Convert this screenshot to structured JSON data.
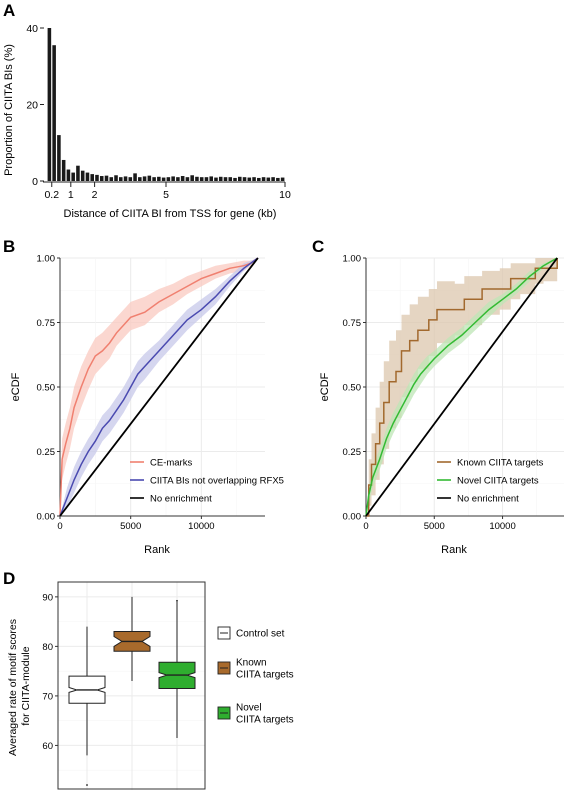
{
  "colors": {
    "ce_marks": "#f08070",
    "ce_marks_band": "#f9c9c0",
    "ciita_bis": "#4a4ab0",
    "ciita_bis_band": "#c7c8ea",
    "known": "#a2692e",
    "known_band": "#dcc7ae",
    "novel": "#33bb33",
    "novel_band": "#bde6b6",
    "no_enrichment": "#000000",
    "control_box": "#ffffff",
    "known_box": "#a86a2c",
    "novel_box": "#2fae2f"
  },
  "chart_data": [
    {
      "panel": "A",
      "type": "bar",
      "xlabel": "Distance of CIITA BI from TSS for gene (kb)",
      "ylabel": "Proportion of CIITA BIs (%)",
      "xlim": [
        0,
        10
      ],
      "ylim": [
        0,
        40
      ],
      "yticks": [
        0,
        20,
        40
      ],
      "xtick_labels": [
        "0.2",
        "1",
        "2",
        "5",
        "10"
      ],
      "xtick_values": [
        0.2,
        1,
        2,
        5,
        10
      ],
      "bin_width_kb": 0.2,
      "values": [
        40,
        35.5,
        12,
        5.5,
        3,
        2.2,
        4,
        2.7,
        2.2,
        1.8,
        1.6,
        1.3,
        1.4,
        1.0,
        1.5,
        1.0,
        1.2,
        1.0,
        2.0,
        1.0,
        1.2,
        1.4,
        1.0,
        1.1,
        0.9,
        1.0,
        1.2,
        1.0,
        1.3,
        1.0,
        1.5,
        1.1,
        1.0,
        1.0,
        1.2,
        0.9,
        1.1,
        1.0,
        1.0,
        0.8,
        1.1,
        1.0,
        0.9,
        1.0,
        0.8,
        1.0,
        0.9,
        1.0,
        0.8,
        0.9
      ]
    },
    {
      "panel": "B",
      "type": "line",
      "xlabel": "Rank",
      "ylabel": "eCDF",
      "xlim": [
        0,
        14500
      ],
      "ylim": [
        0,
        1
      ],
      "xticks": [
        0,
        5000,
        10000
      ],
      "ytick_labels": [
        "0.00",
        "0.25",
        "0.50",
        "0.75",
        "1.00"
      ],
      "grid": true,
      "legend_position": "bottom-right",
      "series": [
        {
          "name": "CE-marks",
          "color_key": "ce_marks",
          "band_key": "ce_marks_band",
          "x": [
            0,
            150,
            400,
            700,
            1000,
            1500,
            2000,
            2500,
            3000,
            3500,
            4000,
            4500,
            5000,
            6000,
            7000,
            8000,
            9000,
            10000,
            11000,
            12000,
            13000,
            13500,
            14000
          ],
          "y": [
            0,
            0.22,
            0.28,
            0.34,
            0.42,
            0.5,
            0.57,
            0.62,
            0.64,
            0.67,
            0.71,
            0.74,
            0.77,
            0.79,
            0.83,
            0.86,
            0.89,
            0.92,
            0.94,
            0.96,
            0.97,
            0.98,
            1.0
          ],
          "lo": [
            0,
            0.14,
            0.2,
            0.26,
            0.34,
            0.42,
            0.49,
            0.55,
            0.58,
            0.61,
            0.66,
            0.69,
            0.72,
            0.74,
            0.79,
            0.82,
            0.86,
            0.89,
            0.92,
            0.94,
            0.95,
            0.97,
            1.0
          ],
          "hi": [
            0,
            0.3,
            0.36,
            0.42,
            0.5,
            0.58,
            0.64,
            0.69,
            0.71,
            0.74,
            0.77,
            0.8,
            0.83,
            0.85,
            0.88,
            0.9,
            0.93,
            0.95,
            0.97,
            0.98,
            0.99,
            0.99,
            1.0
          ]
        },
        {
          "name": "CIITA BIs not overlapping RFX5",
          "color_key": "ciita_bis",
          "band_key": "ciita_bis_band",
          "x": [
            0,
            500,
            1000,
            1500,
            2000,
            2500,
            3000,
            3500,
            4000,
            4500,
            5000,
            5500,
            6000,
            7000,
            8000,
            9000,
            10000,
            11000,
            12000,
            13000,
            14000
          ],
          "y": [
            0,
            0.07,
            0.14,
            0.2,
            0.25,
            0.29,
            0.34,
            0.37,
            0.41,
            0.45,
            0.5,
            0.55,
            0.58,
            0.64,
            0.7,
            0.76,
            0.8,
            0.85,
            0.91,
            0.96,
            1.0
          ],
          "lo": [
            0,
            0.03,
            0.09,
            0.15,
            0.2,
            0.24,
            0.29,
            0.32,
            0.36,
            0.4,
            0.45,
            0.5,
            0.53,
            0.6,
            0.66,
            0.72,
            0.77,
            0.82,
            0.89,
            0.95,
            1.0
          ],
          "hi": [
            0,
            0.11,
            0.19,
            0.25,
            0.3,
            0.34,
            0.39,
            0.42,
            0.46,
            0.5,
            0.55,
            0.6,
            0.63,
            0.68,
            0.74,
            0.8,
            0.84,
            0.88,
            0.93,
            0.98,
            1.0
          ]
        },
        {
          "name": "No enrichment",
          "color_key": "no_enrichment",
          "x": [
            0,
            14000
          ],
          "y": [
            0,
            1
          ]
        }
      ]
    },
    {
      "panel": "C",
      "type": "line",
      "xlabel": "Rank",
      "ylabel": "eCDF",
      "xlim": [
        0,
        14500
      ],
      "ylim": [
        0,
        1
      ],
      "xticks": [
        0,
        5000,
        10000
      ],
      "ytick_labels": [
        "0.00",
        "0.25",
        "0.50",
        "0.75",
        "1.00"
      ],
      "grid": true,
      "legend_position": "bottom-right",
      "series": [
        {
          "name": "Known CIITA targets",
          "color_key": "known",
          "band_key": "known_band",
          "step": true,
          "x": [
            0,
            200,
            400,
            700,
            1000,
            1300,
            1700,
            2200,
            2600,
            3200,
            3800,
            4600,
            5200,
            6500,
            7200,
            8500,
            9800,
            10600,
            11300,
            12400,
            13000,
            14000
          ],
          "y": [
            0,
            0.12,
            0.2,
            0.28,
            0.36,
            0.44,
            0.52,
            0.56,
            0.64,
            0.68,
            0.72,
            0.76,
            0.8,
            0.8,
            0.84,
            0.88,
            0.88,
            0.92,
            0.92,
            0.96,
            0.96,
            1.0
          ],
          "lo": [
            0,
            0.04,
            0.08,
            0.14,
            0.2,
            0.26,
            0.34,
            0.38,
            0.46,
            0.52,
            0.57,
            0.62,
            0.67,
            0.7,
            0.74,
            0.78,
            0.8,
            0.84,
            0.86,
            0.9,
            0.91,
            1.0
          ],
          "hi": [
            0,
            0.22,
            0.32,
            0.42,
            0.52,
            0.6,
            0.68,
            0.72,
            0.78,
            0.82,
            0.85,
            0.88,
            0.91,
            0.9,
            0.93,
            0.95,
            0.96,
            0.98,
            0.98,
            1.0,
            1.0,
            1.0
          ]
        },
        {
          "name": "Novel CIITA targets",
          "color_key": "novel",
          "band_key": "novel_band",
          "x": [
            0,
            200,
            500,
            1000,
            1500,
            2000,
            2500,
            3000,
            3500,
            4000,
            4500,
            5000,
            6000,
            7000,
            8000,
            9000,
            10000,
            11000,
            12000,
            13000,
            14000
          ],
          "y": [
            0,
            0.08,
            0.15,
            0.22,
            0.3,
            0.36,
            0.41,
            0.46,
            0.51,
            0.55,
            0.58,
            0.61,
            0.66,
            0.7,
            0.75,
            0.8,
            0.84,
            0.88,
            0.93,
            0.97,
            1.0
          ],
          "lo": [
            0,
            0.05,
            0.11,
            0.18,
            0.26,
            0.32,
            0.37,
            0.42,
            0.47,
            0.51,
            0.55,
            0.58,
            0.63,
            0.67,
            0.72,
            0.77,
            0.82,
            0.86,
            0.91,
            0.96,
            1.0
          ],
          "hi": [
            0,
            0.11,
            0.19,
            0.26,
            0.34,
            0.4,
            0.45,
            0.5,
            0.55,
            0.59,
            0.62,
            0.64,
            0.69,
            0.73,
            0.78,
            0.83,
            0.86,
            0.9,
            0.95,
            0.98,
            1.0
          ]
        },
        {
          "name": "No enrichment",
          "color_key": "no_enrichment",
          "x": [
            0,
            14000
          ],
          "y": [
            0,
            1
          ]
        }
      ]
    },
    {
      "panel": "D",
      "type": "box",
      "ylabel": "Averaged rate of motif scores\nfor CIITA-module",
      "ylim": [
        51,
        93
      ],
      "yticks": [
        60,
        70,
        80,
        90
      ],
      "notched": true,
      "grid": true,
      "legend_position": "right",
      "groups": [
        {
          "name": "Control set",
          "fill_key": "control_box",
          "whisker_low": 58,
          "q1": 68.5,
          "median": 71.2,
          "q3": 74,
          "whisker_high": 84,
          "notch_low": 70.7,
          "notch_high": 71.7,
          "outliers": [
            52
          ]
        },
        {
          "name": "Known\nCIITA targets",
          "fill_key": "known_box",
          "whisker_low": 73,
          "q1": 79,
          "median": 81,
          "q3": 83,
          "whisker_high": 90,
          "notch_low": 80,
          "notch_high": 82,
          "outliers": []
        },
        {
          "name": "Novel\nCIITA targets",
          "fill_key": "novel_box",
          "whisker_low": 61.5,
          "q1": 71.5,
          "median": 74.2,
          "q3": 76.8,
          "whisker_high": 89,
          "notch_low": 73.7,
          "notch_high": 74.7,
          "outliers": [
            89.2
          ]
        }
      ]
    }
  ],
  "panel_labels": {
    "a": "A",
    "b": "B",
    "c": "C",
    "d": "D"
  }
}
